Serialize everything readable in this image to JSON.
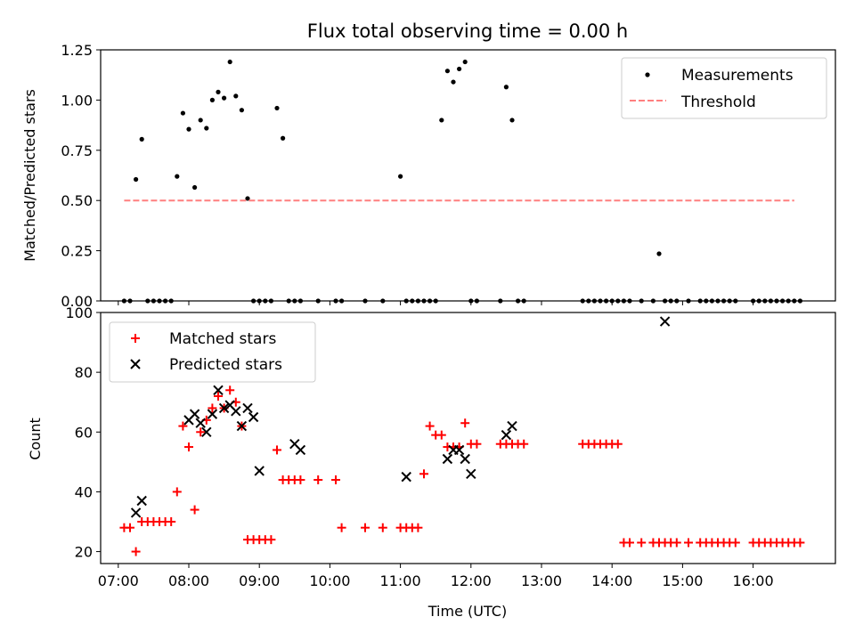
{
  "chart_data": [
    {
      "type": "scatter",
      "title": "Flux total observing time = 0.00 h",
      "xlabel": "",
      "ylabel": "Matched/Predicted stars",
      "xlim": [
        "06:45",
        "17:10"
      ],
      "ylim": [
        0,
        1.25
      ],
      "grid": false,
      "legend_position": "top-right",
      "y_ticks": [
        0.0,
        0.25,
        0.5,
        0.75,
        1.0,
        1.25
      ],
      "y_tick_labels": [
        "0.00",
        "0.25",
        "0.50",
        "0.75",
        "1.00",
        "1.25"
      ],
      "x_ticks": [
        "07:00",
        "08:00",
        "09:00",
        "10:00",
        "11:00",
        "12:00",
        "13:00",
        "14:00",
        "15:00",
        "16:00"
      ],
      "series": [
        {
          "name": "Measurements",
          "kind": "scatter",
          "color": "#000000",
          "x": [
            "07:05",
            "07:10",
            "07:15",
            "07:20",
            "07:25",
            "07:30",
            "07:35",
            "07:40",
            "07:45",
            "07:50",
            "07:55",
            "08:00",
            "08:05",
            "08:10",
            "08:15",
            "08:20",
            "08:25",
            "08:30",
            "08:35",
            "08:40",
            "08:45",
            "08:50",
            "08:55",
            "09:00",
            "09:05",
            "09:10",
            "09:15",
            "09:20",
            "09:25",
            "09:30",
            "09:35",
            "09:50",
            "10:05",
            "10:10",
            "10:30",
            "10:45",
            "11:00",
            "11:05",
            "11:10",
            "11:15",
            "11:20",
            "11:25",
            "11:30",
            "11:35",
            "11:40",
            "11:45",
            "11:50",
            "11:55",
            "12:00",
            "12:05",
            "12:25",
            "12:30",
            "12:35",
            "12:40",
            "12:45",
            "13:35",
            "13:40",
            "13:45",
            "13:50",
            "13:55",
            "14:00",
            "14:05",
            "14:10",
            "14:15",
            "14:25",
            "14:35",
            "14:40",
            "14:45",
            "14:50",
            "14:55",
            "15:05",
            "15:15",
            "15:20",
            "15:25",
            "15:30",
            "15:35",
            "15:40",
            "15:45",
            "16:00",
            "16:05",
            "16:10",
            "16:15",
            "16:20",
            "16:25",
            "16:30",
            "16:35",
            "16:40"
          ],
          "y": [
            0,
            0,
            0.605,
            0.805,
            0,
            0,
            0,
            0,
            0,
            0.62,
            0.935,
            0.855,
            0.565,
            0.9,
            0.86,
            1.0,
            1.04,
            1.01,
            1.19,
            1.02,
            0.95,
            0.51,
            0,
            0,
            0,
            0,
            0.96,
            0.81,
            0,
            0,
            0,
            0,
            0,
            0,
            0,
            0,
            0.62,
            0,
            0,
            0,
            0,
            0,
            0,
            0.9,
            1.145,
            1.09,
            1.155,
            1.19,
            0,
            0,
            0,
            1.065,
            0.9,
            0,
            0,
            0,
            0,
            0,
            0,
            0,
            0,
            0,
            0,
            0,
            0,
            0,
            0.235,
            0,
            0,
            0,
            0,
            0,
            0,
            0,
            0,
            0,
            0,
            0,
            0,
            0,
            0,
            0,
            0,
            0,
            0,
            0,
            0
          ]
        },
        {
          "name": "Threshold",
          "kind": "dashed-line",
          "color": "#ff7f7f",
          "x": [
            "07:05",
            "16:35"
          ],
          "y": [
            0.5,
            0.5
          ]
        }
      ]
    },
    {
      "type": "scatter",
      "title": "",
      "xlabel": "Time (UTC)",
      "ylabel": "Count",
      "xlim": [
        "06:45",
        "17:10"
      ],
      "ylim": [
        16,
        100
      ],
      "grid": false,
      "legend_position": "top-left",
      "y_ticks": [
        20,
        40,
        60,
        80,
        100
      ],
      "y_tick_labels": [
        "20",
        "40",
        "60",
        "80",
        "100"
      ],
      "x_ticks": [
        "07:00",
        "08:00",
        "09:00",
        "10:00",
        "11:00",
        "12:00",
        "13:00",
        "14:00",
        "15:00",
        "16:00"
      ],
      "x_tick_labels": [
        "07:00",
        "08:00",
        "09:00",
        "10:00",
        "11:00",
        "12:00",
        "13:00",
        "14:00",
        "15:00",
        "16:00"
      ],
      "series": [
        {
          "name": "Matched stars",
          "kind": "plus",
          "color": "#ff0000",
          "x": [
            "07:05",
            "07:10",
            "07:15",
            "07:20",
            "07:25",
            "07:30",
            "07:35",
            "07:40",
            "07:45",
            "07:50",
            "07:55",
            "08:00",
            "08:05",
            "08:10",
            "08:15",
            "08:20",
            "08:25",
            "08:30",
            "08:35",
            "08:40",
            "08:45",
            "08:50",
            "08:55",
            "09:00",
            "09:05",
            "09:10",
            "09:15",
            "09:20",
            "09:25",
            "09:30",
            "09:35",
            "09:50",
            "10:05",
            "10:10",
            "10:30",
            "10:45",
            "11:00",
            "11:05",
            "11:10",
            "11:15",
            "11:20",
            "11:25",
            "11:30",
            "11:35",
            "11:40",
            "11:45",
            "11:50",
            "11:55",
            "12:00",
            "12:05",
            "12:25",
            "12:30",
            "12:35",
            "12:40",
            "12:45",
            "13:35",
            "13:40",
            "13:45",
            "13:50",
            "13:55",
            "14:00",
            "14:05",
            "14:10",
            "14:15",
            "14:25",
            "14:35",
            "14:40",
            "14:45",
            "14:50",
            "14:55",
            "15:05",
            "15:15",
            "15:20",
            "15:25",
            "15:30",
            "15:35",
            "15:40",
            "15:45",
            "16:00",
            "16:05",
            "16:10",
            "16:15",
            "16:20",
            "16:25",
            "16:30",
            "16:35",
            "16:40"
          ],
          "y": [
            28,
            28,
            20,
            30,
            30,
            30,
            30,
            30,
            30,
            40,
            62,
            55,
            34,
            60,
            64,
            68,
            72,
            68,
            74,
            70,
            62,
            24,
            24,
            24,
            24,
            24,
            54,
            44,
            44,
            44,
            44,
            44,
            44,
            28,
            28,
            28,
            28,
            28,
            28,
            28,
            46,
            62,
            59,
            59,
            55,
            55,
            55,
            63,
            56,
            56,
            56,
            56,
            56,
            56,
            56,
            56,
            56,
            56,
            56,
            56,
            56,
            56,
            23,
            23,
            23,
            23,
            23,
            23,
            23,
            23,
            23,
            23,
            23,
            23,
            23,
            23,
            23,
            23,
            23,
            23,
            23,
            23,
            23,
            23,
            23,
            23,
            23
          ]
        },
        {
          "name": "Predicted stars",
          "kind": "x",
          "color": "#000000",
          "x": [
            "07:15",
            "07:20",
            "08:00",
            "08:05",
            "08:10",
            "08:15",
            "08:20",
            "08:25",
            "08:30",
            "08:35",
            "08:40",
            "08:45",
            "08:50",
            "08:55",
            "09:00",
            "09:30",
            "09:35",
            "11:05",
            "11:40",
            "11:45",
            "11:50",
            "11:55",
            "12:00",
            "12:30",
            "12:35",
            "14:45"
          ],
          "y": [
            33,
            37,
            64,
            66,
            63,
            60,
            66,
            74,
            68,
            69,
            67,
            62,
            68,
            65,
            47,
            56,
            54,
            45,
            51,
            54,
            54,
            51,
            46,
            59,
            62,
            97
          ]
        }
      ]
    }
  ]
}
